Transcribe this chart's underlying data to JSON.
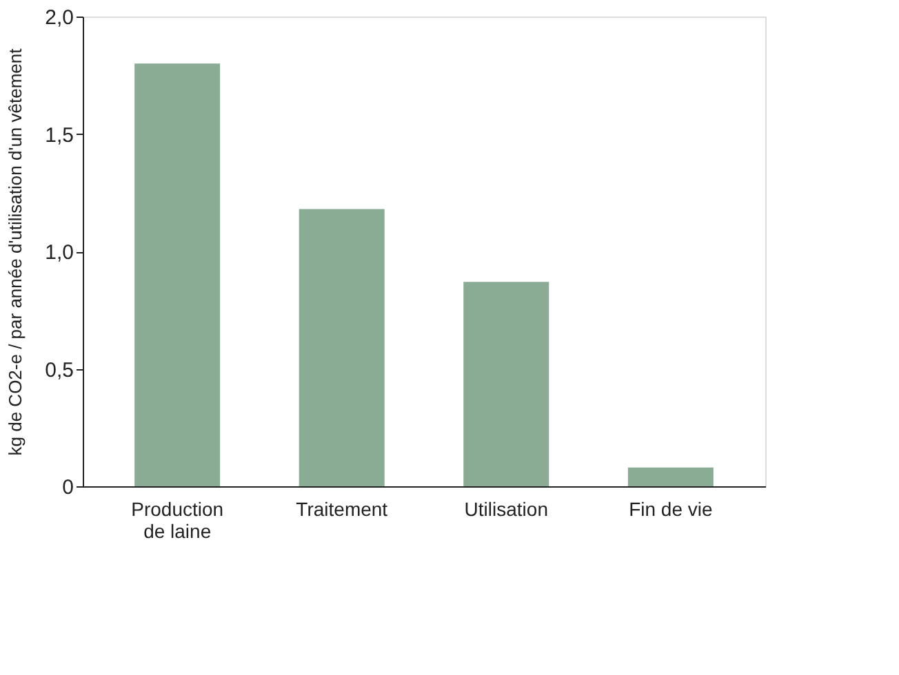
{
  "chart_data": {
    "type": "bar",
    "ylabel": "kg de CO2-e / par année d'utilisation d'un vêtement",
    "categories": [
      "Production de laine",
      "Traitement",
      "Utilisation",
      "Fin de vie"
    ],
    "values": [
      1.8,
      1.18,
      0.87,
      0.08
    ],
    "color": "#8aab94",
    "ylim": [
      0,
      2
    ],
    "yticks": [
      0,
      {
        "value": 0.5,
        "label": "0,5"
      },
      {
        "value": 1,
        "label": "1,0"
      },
      {
        "value": 1.5,
        "label": "1,5"
      },
      {
        "value": 2,
        "label": "2,0"
      }
    ],
    "grid": false
  }
}
